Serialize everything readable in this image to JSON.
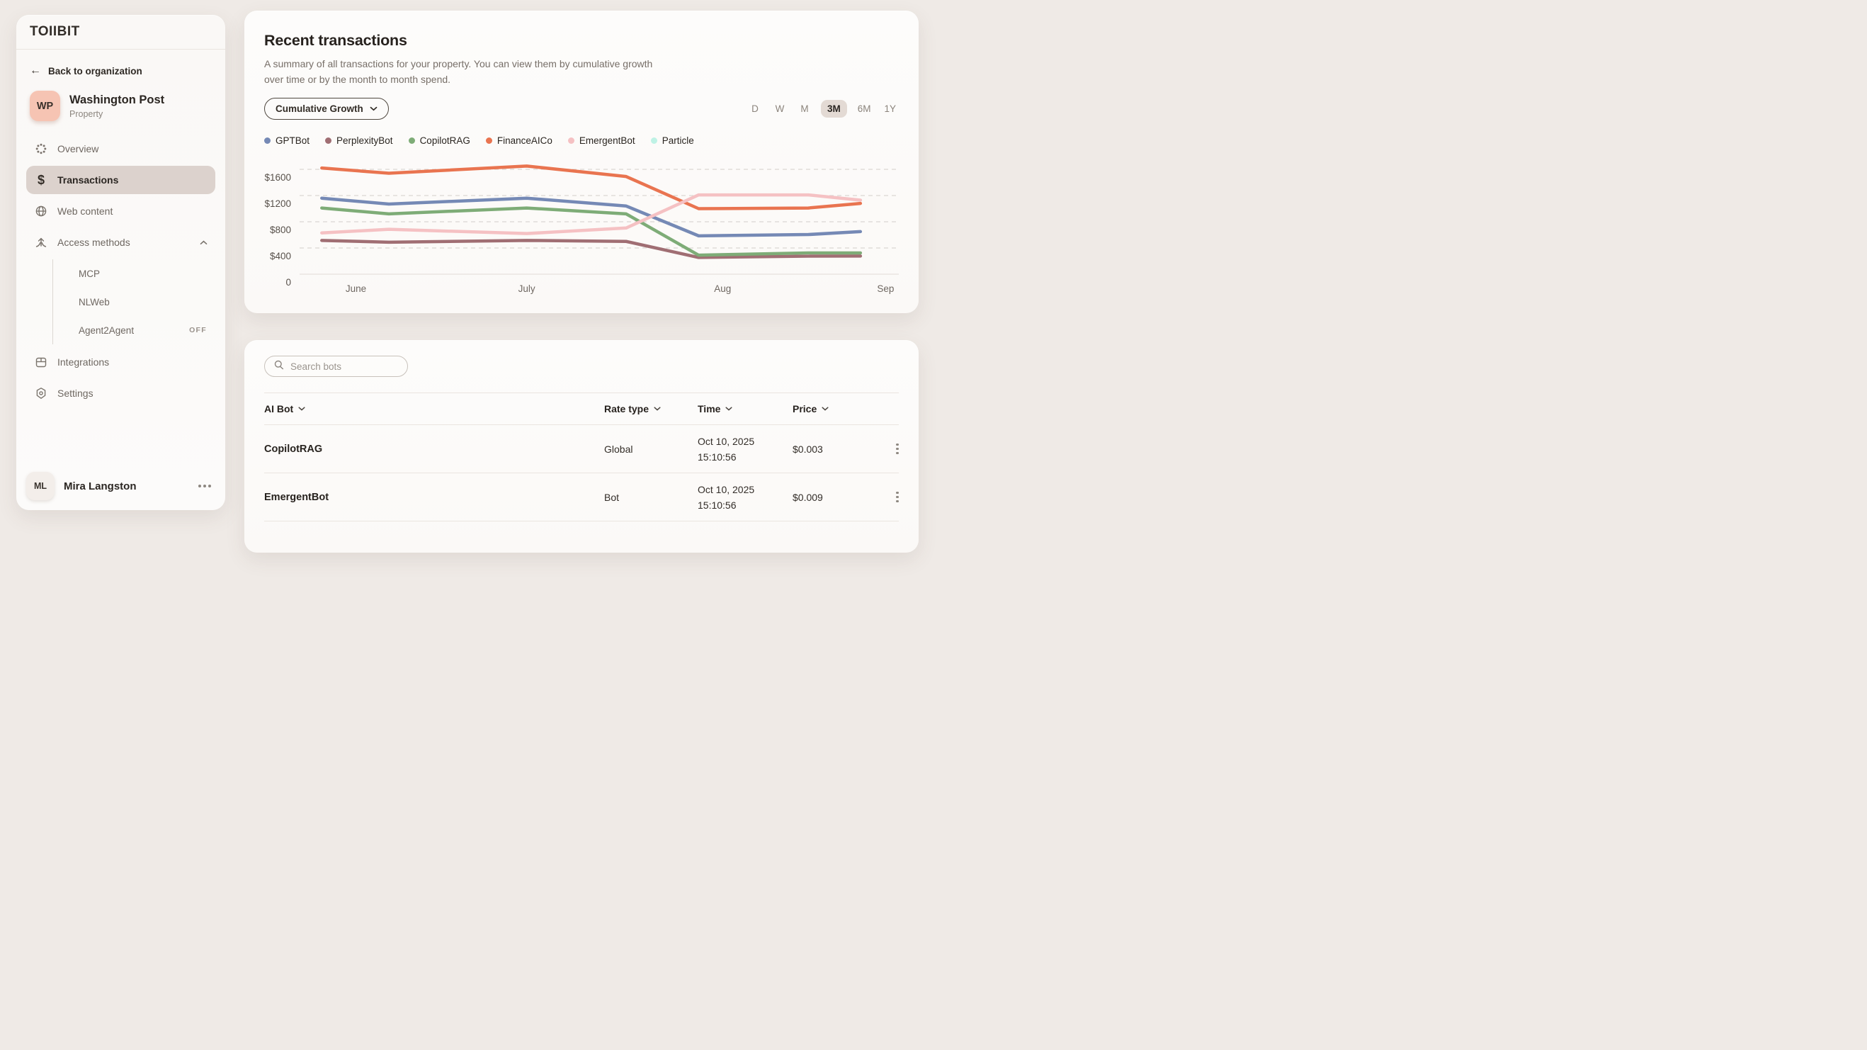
{
  "app": {
    "logo": "TOIIBIT"
  },
  "sidebar": {
    "back_label": "Back to organization",
    "property": {
      "initials": "WP",
      "name": "Washington Post",
      "type": "Property"
    },
    "nav": [
      {
        "label": "Overview",
        "icon": "overview-icon",
        "active": false
      },
      {
        "label": "Transactions",
        "icon": "transactions-icon",
        "active": true
      },
      {
        "label": "Web content",
        "icon": "web-content-icon",
        "active": false
      },
      {
        "label": "Access methods",
        "icon": "access-methods-icon",
        "active": false,
        "expanded": true
      }
    ],
    "sub_nav": [
      {
        "label": "MCP",
        "badge": ""
      },
      {
        "label": "NLWeb",
        "badge": ""
      },
      {
        "label": "Agent2Agent",
        "badge": "OFF"
      }
    ],
    "nav_bottom": [
      {
        "label": "Integrations",
        "icon": "integrations-icon"
      },
      {
        "label": "Settings",
        "icon": "settings-icon"
      }
    ],
    "user": {
      "initials": "ML",
      "name": "Mira Langston"
    }
  },
  "chart_card": {
    "title": "Recent transactions",
    "description": "A summary of all transactions for your property. You can view them by cumulative growth over time or by the month to month spend.",
    "view_selector_label": "Cumulative Growth",
    "ranges": [
      "D",
      "W",
      "M",
      "3M",
      "6M",
      "1Y"
    ],
    "active_range": "3M"
  },
  "chart_data": {
    "type": "line",
    "title": "Recent transactions — Cumulative Growth (3M)",
    "ylim": [
      0,
      1700
    ],
    "grid": "dashed horizontal",
    "legend_position": "top",
    "y_ticks": [
      {
        "label": "$1600",
        "value": 1600
      },
      {
        "label": "$1200",
        "value": 1200
      },
      {
        "label": "$800",
        "value": 800
      },
      {
        "label": "$400",
        "value": 400
      },
      {
        "label": "0",
        "value": 0
      }
    ],
    "x_tick_labels": [
      {
        "label": "June",
        "pos": 0.094
      },
      {
        "label": "July",
        "pos": 0.379
      },
      {
        "label": "Aug",
        "pos": 0.706
      },
      {
        "label": "Sep",
        "pos": 0.978
      }
    ],
    "x_positions": [
      0.037,
      0.149,
      0.379,
      0.545,
      0.666,
      0.849,
      0.936
    ],
    "series": [
      {
        "name": "GPTBot",
        "color": "#7589B5",
        "values": [
          1160,
          1070,
          1160,
          1040,
          585,
          605,
          650
        ]
      },
      {
        "name": "PerplexityBot",
        "color": "#A06E73",
        "values": [
          515,
          488,
          515,
          500,
          255,
          275,
          277
        ]
      },
      {
        "name": "CopilotRAG",
        "color": "#7EAC77",
        "values": [
          1010,
          920,
          1010,
          920,
          290,
          325,
          325
        ]
      },
      {
        "name": "FinanceAICo",
        "color": "#E97450",
        "values": [
          1620,
          1540,
          1650,
          1490,
          1000,
          1010,
          1080
        ]
      },
      {
        "name": "EmergentBot",
        "color": "#F5C1C3",
        "values": [
          630,
          685,
          620,
          705,
          1210,
          1210,
          1130
        ]
      },
      {
        "name": "Particle",
        "color": "#BEF2E5",
        "values": []
      }
    ]
  },
  "table_card": {
    "search_placeholder": "Search bots",
    "columns": [
      {
        "label": "AI Bot",
        "sortable": true
      },
      {
        "label": "Rate type",
        "sortable": true
      },
      {
        "label": "Time",
        "sortable": true
      },
      {
        "label": "Price",
        "sortable": true
      }
    ],
    "rows": [
      {
        "bot": "CopilotRAG",
        "rate_type": "Global",
        "date": "Oct 10, 2025",
        "time": "15:10:56",
        "price": "$0.003"
      },
      {
        "bot": "EmergentBot",
        "rate_type": "Bot",
        "date": "Oct 10, 2025",
        "time": "15:10:56",
        "price": "$0.009"
      }
    ]
  },
  "colors": {
    "page_bg": "#EFEAE6",
    "card_bg": "#FDFCFB",
    "selected_nav_bg": "#DCD2CD",
    "active_range_bg": "#E3DAD4",
    "accent_salmon": "#F6C4B3",
    "text_dark": "#27221E",
    "text_gray": "#776F68",
    "gridline": "#DBD7D3"
  }
}
